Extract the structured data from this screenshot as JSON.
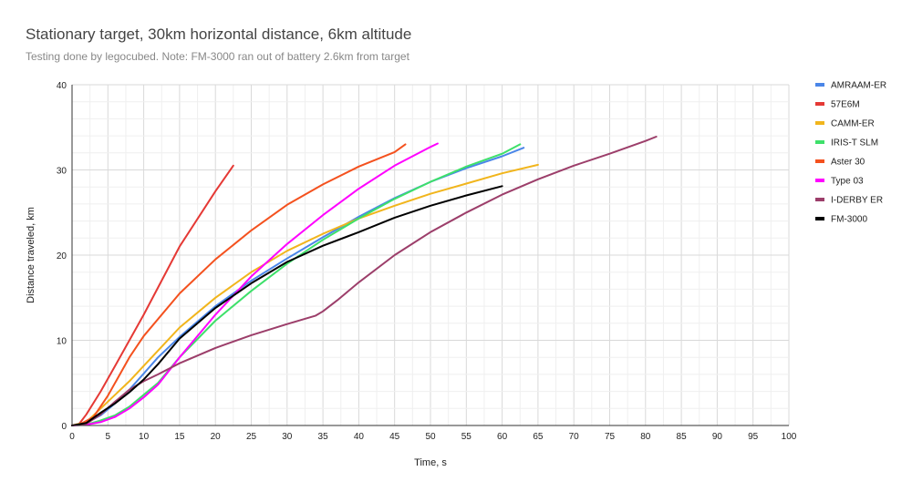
{
  "chart_data": {
    "type": "line",
    "title": "Stationary target, 30km horizontal distance, 6km altitude",
    "subtitle": "Testing done by legocubed. Note: FM-3000 ran out of battery 2.6km from target",
    "xlabel": "Time, s",
    "ylabel": "Distance traveled, km",
    "xlim": [
      0,
      100
    ],
    "ylim": [
      0,
      40
    ],
    "x_ticks": [
      0,
      5,
      10,
      15,
      20,
      25,
      30,
      35,
      40,
      45,
      50,
      55,
      60,
      65,
      70,
      75,
      80,
      85,
      90,
      95,
      100
    ],
    "y_ticks": [
      0,
      10,
      20,
      30,
      40
    ],
    "grid": true,
    "legend_position": "right",
    "series": [
      {
        "name": "AMRAAM-ER",
        "color": "#4a86e8",
        "points": [
          [
            0,
            0
          ],
          [
            2,
            0.3
          ],
          [
            4,
            1.2
          ],
          [
            6,
            2.6
          ],
          [
            8,
            4.2
          ],
          [
            10,
            6.1
          ],
          [
            12,
            8
          ],
          [
            15,
            10.4
          ],
          [
            20,
            14
          ],
          [
            25,
            17
          ],
          [
            30,
            19.6
          ],
          [
            35,
            22.1
          ],
          [
            40,
            24.5
          ],
          [
            45,
            26.7
          ],
          [
            50,
            28.6
          ],
          [
            55,
            30.2
          ],
          [
            60,
            31.6
          ],
          [
            63,
            32.6
          ]
        ]
      },
      {
        "name": "57E6M",
        "color": "#e53935",
        "points": [
          [
            0,
            0
          ],
          [
            1,
            0.2
          ],
          [
            2,
            1.3
          ],
          [
            4,
            4
          ],
          [
            6,
            7
          ],
          [
            8,
            10
          ],
          [
            10,
            13
          ],
          [
            15,
            21
          ],
          [
            20,
            27.5
          ],
          [
            22.5,
            30.5
          ]
        ]
      },
      {
        "name": "CAMM-ER",
        "color": "#f1b51c",
        "points": [
          [
            0,
            0
          ],
          [
            2,
            0.4
          ],
          [
            4,
            2
          ],
          [
            6,
            3.6
          ],
          [
            8,
            5.2
          ],
          [
            10,
            7
          ],
          [
            15,
            11.5
          ],
          [
            20,
            15
          ],
          [
            25,
            18
          ],
          [
            30,
            20.5
          ],
          [
            35,
            22.5
          ],
          [
            40,
            24.3
          ],
          [
            45,
            25.8
          ],
          [
            50,
            27.2
          ],
          [
            55,
            28.4
          ],
          [
            60,
            29.6
          ],
          [
            65,
            30.6
          ]
        ]
      },
      {
        "name": "IRIS-T SLM",
        "color": "#3ee06a",
        "points": [
          [
            0,
            0
          ],
          [
            2,
            0.1
          ],
          [
            4,
            0.6
          ],
          [
            6,
            1.2
          ],
          [
            8,
            2.2
          ],
          [
            10,
            3.6
          ],
          [
            12,
            5
          ],
          [
            15,
            8
          ],
          [
            20,
            12.3
          ],
          [
            25,
            15.8
          ],
          [
            30,
            19
          ],
          [
            35,
            21.8
          ],
          [
            40,
            24.3
          ],
          [
            45,
            26.6
          ],
          [
            50,
            28.6
          ],
          [
            55,
            30.4
          ],
          [
            60,
            31.9
          ],
          [
            62.5,
            33
          ]
        ]
      },
      {
        "name": "Aster 30",
        "color": "#f4511e",
        "points": [
          [
            0,
            0
          ],
          [
            1,
            0.1
          ],
          [
            3,
            1
          ],
          [
            5,
            3.5
          ],
          [
            8,
            8
          ],
          [
            10,
            10.5
          ],
          [
            15,
            15.5
          ],
          [
            20,
            19.5
          ],
          [
            25,
            22.9
          ],
          [
            30,
            25.9
          ],
          [
            35,
            28.3
          ],
          [
            40,
            30.4
          ],
          [
            45,
            32.1
          ],
          [
            46.5,
            33
          ]
        ]
      },
      {
        "name": "Type 03",
        "color": "#ff00ff",
        "points": [
          [
            0,
            0
          ],
          [
            2,
            0.1
          ],
          [
            4,
            0.4
          ],
          [
            6,
            1
          ],
          [
            8,
            2
          ],
          [
            10,
            3.3
          ],
          [
            12,
            4.8
          ],
          [
            15,
            8
          ],
          [
            20,
            13
          ],
          [
            25,
            17.5
          ],
          [
            30,
            21.3
          ],
          [
            35,
            24.7
          ],
          [
            40,
            27.8
          ],
          [
            45,
            30.5
          ],
          [
            50,
            32.7
          ],
          [
            51,
            33.1
          ]
        ]
      },
      {
        "name": "I-DERBY ER",
        "color": "#9c3e6a",
        "points": [
          [
            0,
            0
          ],
          [
            2,
            0.2
          ],
          [
            4,
            1.3
          ],
          [
            6,
            2.8
          ],
          [
            8,
            4.2
          ],
          [
            10,
            5.2
          ],
          [
            12,
            6
          ],
          [
            15,
            7.3
          ],
          [
            20,
            9.1
          ],
          [
            25,
            10.6
          ],
          [
            30,
            11.9
          ],
          [
            34,
            12.9
          ],
          [
            35,
            13.4
          ],
          [
            37,
            14.7
          ],
          [
            40,
            16.8
          ],
          [
            45,
            20
          ],
          [
            50,
            22.7
          ],
          [
            55,
            25
          ],
          [
            60,
            27.1
          ],
          [
            65,
            28.9
          ],
          [
            70,
            30.5
          ],
          [
            75,
            31.9
          ],
          [
            80,
            33.4
          ],
          [
            81.5,
            33.9
          ]
        ]
      },
      {
        "name": "FM-3000",
        "color": "#000000",
        "points": [
          [
            0,
            0
          ],
          [
            2,
            0.3
          ],
          [
            4,
            1.5
          ],
          [
            6,
            2.6
          ],
          [
            8,
            3.9
          ],
          [
            10,
            5.4
          ],
          [
            12,
            7.2
          ],
          [
            15,
            10.2
          ],
          [
            20,
            13.8
          ],
          [
            25,
            16.7
          ],
          [
            30,
            19.2
          ],
          [
            35,
            21.1
          ],
          [
            40,
            22.7
          ],
          [
            45,
            24.4
          ],
          [
            50,
            25.8
          ],
          [
            55,
            27
          ],
          [
            60,
            28.1
          ]
        ]
      }
    ]
  }
}
